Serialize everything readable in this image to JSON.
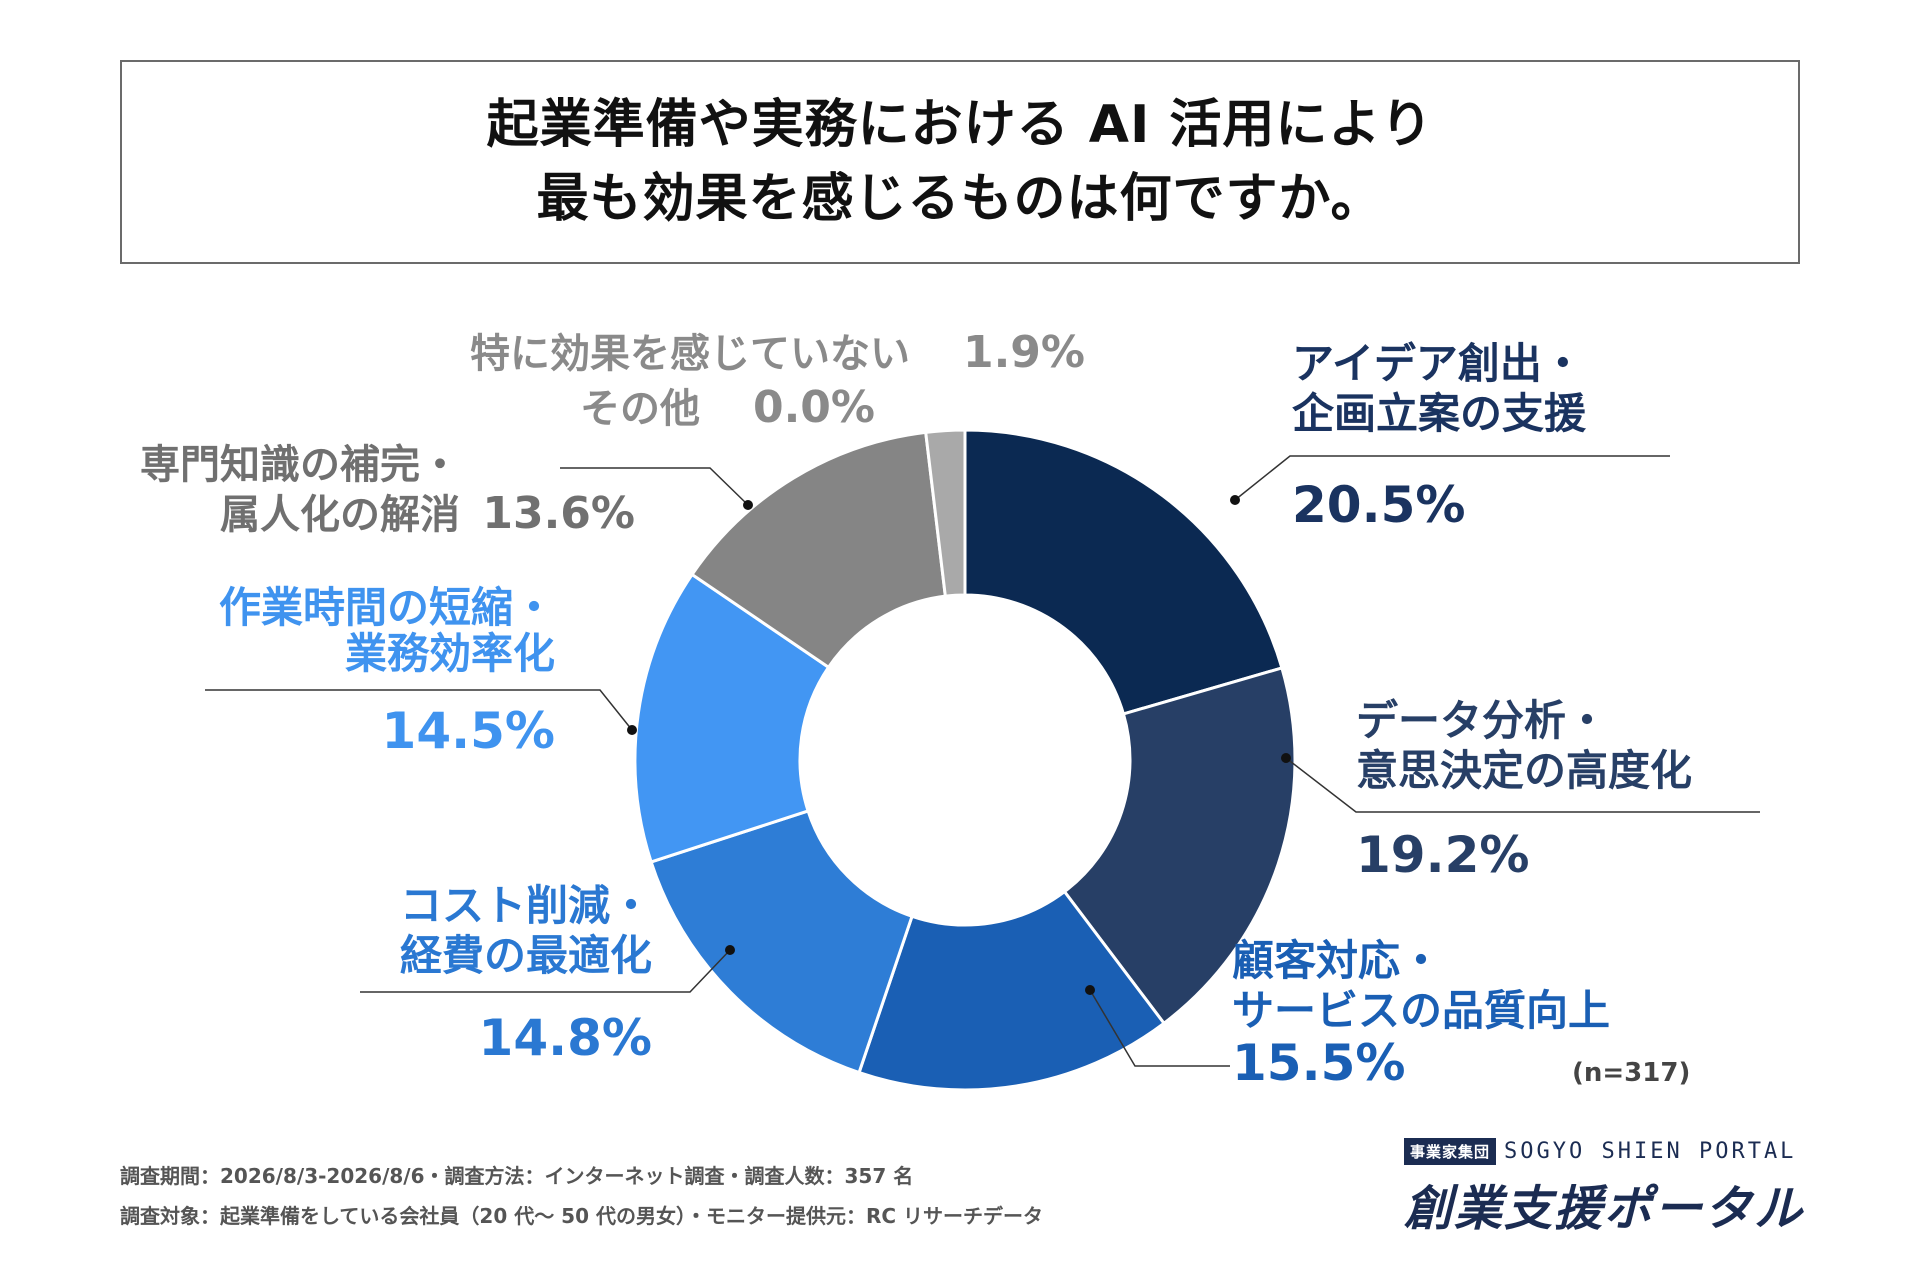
{
  "title": {
    "line1": "起業準備や実務における AI 活用により",
    "line2": "最も効果を感じるものは何ですか。"
  },
  "chart_data": {
    "type": "pie",
    "donut": true,
    "unit": "%",
    "n_note": "(n=317)",
    "slices": [
      {
        "label_lines": [
          "アイデア創出・",
          "企画立案の支援"
        ],
        "value": 20.5,
        "pct_text": "20.5%",
        "color": "#0b2952",
        "label_color": "#1a3360"
      },
      {
        "label_lines": [
          "データ分析・",
          "意思決定の高度化"
        ],
        "value": 19.2,
        "pct_text": "19.2%",
        "color": "#273f66",
        "label_color": "#273f66"
      },
      {
        "label_lines": [
          "顧客対応・",
          "サービスの品質向上"
        ],
        "value": 15.5,
        "pct_text": "15.5%",
        "color": "#1a5fb4",
        "label_color": "#1a5fb4"
      },
      {
        "label_lines": [
          "コスト削減・",
          "経費の最適化"
        ],
        "value": 14.8,
        "pct_text": "14.8%",
        "color": "#2e7dd6",
        "label_color": "#2a78d2"
      },
      {
        "label_lines": [
          "作業時間の短縮・",
          "業務効率化"
        ],
        "value": 14.5,
        "pct_text": "14.5%",
        "color": "#4296f3",
        "label_color": "#3f93ef"
      },
      {
        "label_lines": [
          "専門知識の補完・",
          "属人化の解消"
        ],
        "value": 13.6,
        "pct_text": "13.6%",
        "color": "#858585",
        "label_color": "#707070"
      },
      {
        "label_lines": [
          "その他"
        ],
        "value": 0.0,
        "pct_text": "0.0%",
        "color": "#a0a0a0",
        "label_color": "#8a8a8a"
      },
      {
        "label_lines": [
          "特に効果を感じていない"
        ],
        "value": 1.9,
        "pct_text": "1.9%",
        "color": "#a9a9a9",
        "label_color": "#8a8a8a"
      }
    ]
  },
  "footer": {
    "line1": "調査期間：2026/8/3-2026/8/6・調査方法：インターネット調査・調査人数：357 名",
    "line2": "調査対象：起業準備をしている会社員（20 代～ 50 代の男女）・モニター提供元：RC リサーチデータ"
  },
  "logo": {
    "badge": "事業家集団",
    "en": "SOGYO SHIEN PORTAL",
    "jp": "創業支援ポータル"
  }
}
